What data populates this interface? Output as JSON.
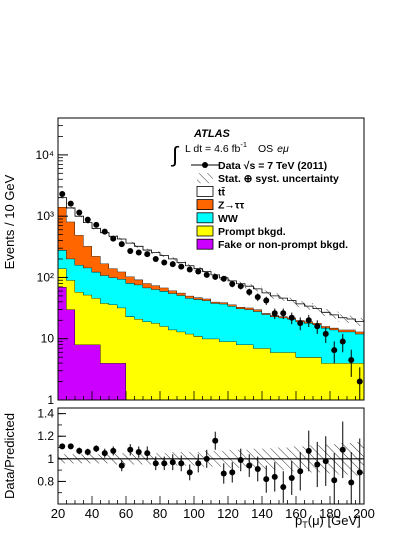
{
  "chart_data": [
    {
      "type": "bar",
      "stacked": true,
      "log_y": true,
      "ylabel": "Events / 10 GeV",
      "ylim": [
        1,
        40000
      ],
      "xlim": [
        20,
        200
      ],
      "y_ticks": [
        "1",
        "10",
        "10²",
        "10³",
        "10⁴"
      ],
      "bin_edges": [
        20,
        25,
        30,
        35,
        40,
        45,
        50,
        55,
        60,
        65,
        70,
        75,
        80,
        85,
        90,
        95,
        100,
        105,
        110,
        115,
        120,
        125,
        130,
        135,
        140,
        145,
        150,
        155,
        160,
        165,
        170,
        175,
        180,
        185,
        190,
        195,
        200
      ],
      "series": [
        {
          "name": "Fake or non-prompt bkgd.",
          "color": "#cc00ff",
          "values": [
            70,
            30,
            8,
            8,
            8,
            4,
            4,
            4,
            1,
            1,
            1,
            1,
            1,
            1,
            1,
            1,
            1,
            1,
            1,
            1,
            1,
            1,
            1,
            1,
            1,
            1,
            1,
            1,
            1,
            1,
            1,
            1,
            1,
            1,
            1,
            1
          ]
        },
        {
          "name": "Prompt bkgd.",
          "color": "#ffff00",
          "values": [
            70,
            60,
            50,
            44,
            38,
            34,
            32,
            28,
            22,
            20,
            18,
            17,
            15,
            13,
            12,
            11,
            10,
            9,
            9,
            8,
            8,
            7,
            7,
            6,
            6,
            5,
            5,
            5,
            4,
            4,
            4,
            3,
            3,
            3,
            3,
            3
          ]
        },
        {
          "name": "WW",
          "color": "#00ffff",
          "values": [
            140,
            112,
            102,
            92,
            77,
            70,
            64,
            62,
            58,
            55,
            49,
            46,
            44,
            41,
            38,
            34,
            33,
            32,
            28,
            28,
            25,
            23,
            22,
            21,
            18,
            17,
            16,
            15,
            14,
            13,
            12,
            11,
            10,
            9,
            9,
            8
          ]
        },
        {
          "name": "Z→ττ",
          "color": "#ff6600",
          "values": [
            1130,
            610,
            330,
            180,
            100,
            60,
            40,
            30,
            22,
            16,
            12,
            10,
            8,
            6,
            5,
            4,
            3,
            3,
            2,
            2,
            2,
            2,
            2,
            2,
            1,
            1,
            1,
            1,
            1,
            1,
            1,
            1,
            1,
            1,
            1,
            1
          ]
        },
        {
          "name": "tt̄",
          "color": "#ffffff",
          "values": [
            600,
            550,
            510,
            460,
            410,
            370,
            330,
            300,
            260,
            230,
            200,
            180,
            160,
            140,
            120,
            105,
            92,
            80,
            70,
            60,
            52,
            46,
            40,
            35,
            30,
            26,
            23,
            20,
            17,
            15,
            13,
            11,
            9.5,
            8,
            7,
            6
          ]
        }
      ],
      "data": {
        "name": "Data √s = 7 TeV (2011)",
        "x": [
          22.5,
          27.5,
          32.5,
          37.5,
          42.5,
          47.5,
          52.5,
          57.5,
          62.5,
          67.5,
          72.5,
          77.5,
          82.5,
          87.5,
          92.5,
          97.5,
          102.5,
          107.5,
          112.5,
          117.5,
          122.5,
          127.5,
          132.5,
          137.5,
          142.5,
          147.5,
          152.5,
          157.5,
          162.5,
          167.5,
          172.5,
          177.5,
          182.5,
          187.5,
          192.5,
          197.5
        ],
        "y": [
          2300,
          1600,
          1150,
          880,
          720,
          560,
          430,
          350,
          270,
          255,
          240,
          200,
          175,
          165,
          150,
          135,
          125,
          110,
          102,
          95,
          78,
          72,
          58,
          48,
          42,
          26,
          26,
          22,
          18,
          20,
          16,
          12,
          6.5,
          9,
          4.5,
          2
        ]
      },
      "legend": [
        {
          "label": "Data √s = 7 TeV (2011)",
          "kind": "marker"
        },
        {
          "label": "Stat. ⊕ syst. uncertainty",
          "kind": "hatch"
        },
        {
          "label": "tt̄",
          "kind": "fill",
          "color": "#ffffff"
        },
        {
          "label": "Z→ττ",
          "kind": "fill",
          "color": "#ff6600"
        },
        {
          "label": "WW",
          "kind": "fill",
          "color": "#00ffff"
        },
        {
          "label": "Prompt bkgd.",
          "kind": "fill",
          "color": "#ffff00"
        },
        {
          "label": "Fake or non-prompt bkgd.",
          "kind": "fill",
          "color": "#cc00ff"
        }
      ],
      "legend_position": "top-right",
      "annotations": {
        "atlas": "ATLAS",
        "lumi_prefix": "∫",
        "lumi": "L dt = 4.6 fb",
        "lumi_exp": "-1",
        "channel_prefix": "OS",
        "channel": "eμ"
      }
    },
    {
      "type": "scatter",
      "ylabel": "Data/Predicted",
      "xlabel": "p",
      "xlabel_sub": "T",
      "xlabel_suffix": "(μ) [GeV]",
      "xlim": [
        20,
        200
      ],
      "ylim": [
        0.6,
        1.45
      ],
      "y_ticks": [
        "0.8",
        "1",
        "1.2",
        "1.4"
      ],
      "x_ticks": [
        "20",
        "40",
        "60",
        "80",
        "100",
        "120",
        "140",
        "160",
        "180",
        "200"
      ],
      "reference_line": 1,
      "x": [
        22.5,
        27.5,
        32.5,
        37.5,
        42.5,
        47.5,
        52.5,
        57.5,
        62.5,
        67.5,
        72.5,
        77.5,
        82.5,
        87.5,
        92.5,
        97.5,
        102.5,
        107.5,
        112.5,
        117.5,
        122.5,
        127.5,
        132.5,
        137.5,
        142.5,
        147.5,
        152.5,
        157.5,
        162.5,
        167.5,
        172.5,
        177.5,
        182.5,
        187.5,
        192.5,
        197.5
      ],
      "y": [
        1.11,
        1.11,
        1.07,
        1.06,
        1.09,
        1.05,
        1.07,
        0.94,
        1.08,
        1.06,
        1.05,
        0.96,
        0.96,
        0.97,
        0.96,
        0.88,
        0.96,
        1.0,
        1.16,
        0.87,
        0.88,
        0.99,
        0.94,
        0.91,
        0.82,
        0.84,
        0.75,
        0.83,
        0.89,
        1.07,
        0.95,
        0.98,
        0.81,
        1.08,
        0.79,
        0.88
      ],
      "err": [
        0.02,
        0.02,
        0.03,
        0.03,
        0.03,
        0.04,
        0.04,
        0.05,
        0.05,
        0.05,
        0.06,
        0.06,
        0.06,
        0.07,
        0.07,
        0.07,
        0.08,
        0.08,
        0.08,
        0.09,
        0.09,
        0.1,
        0.1,
        0.11,
        0.12,
        0.13,
        0.14,
        0.15,
        0.17,
        0.18,
        0.2,
        0.22,
        0.24,
        0.25,
        0.27,
        0.3
      ],
      "band_halfwidth": [
        0.04,
        0.04,
        0.04,
        0.04,
        0.04,
        0.04,
        0.05,
        0.05,
        0.05,
        0.05,
        0.05,
        0.05,
        0.05,
        0.06,
        0.06,
        0.06,
        0.06,
        0.07,
        0.07,
        0.07,
        0.08,
        0.08,
        0.08,
        0.09,
        0.09,
        0.1,
        0.1,
        0.11,
        0.11,
        0.12,
        0.12,
        0.13,
        0.13,
        0.14,
        0.14,
        0.15
      ]
    }
  ]
}
